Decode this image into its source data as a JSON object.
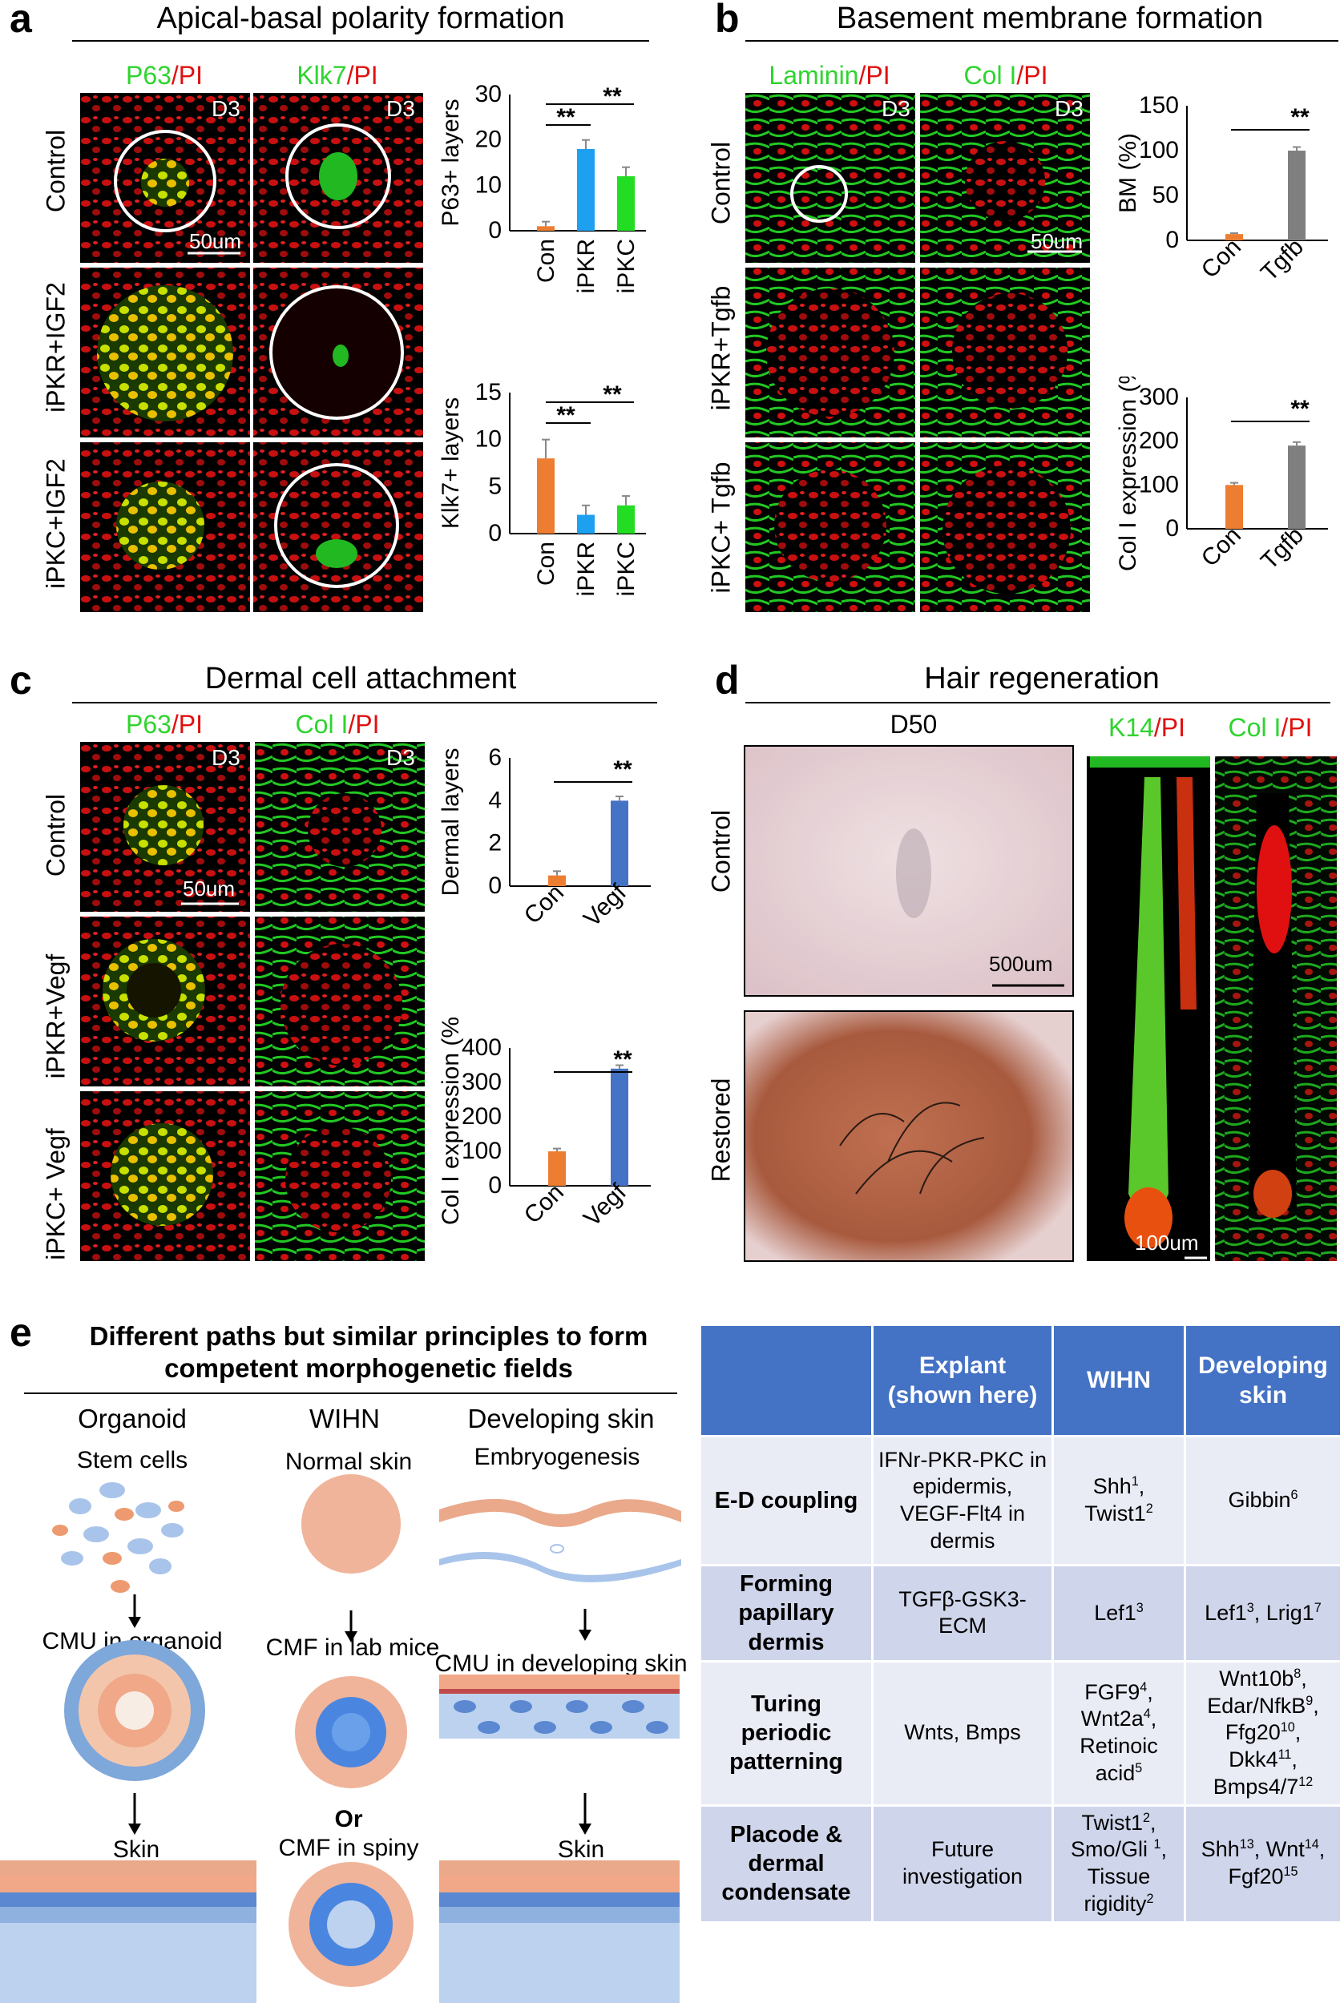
{
  "panels": {
    "a": {
      "letter": "a",
      "title": "Apical-basal polarity formation",
      "col1": {
        "marker": "P63",
        "sep": "/",
        "counter": "PI"
      },
      "col2": {
        "marker": "Klk7",
        "sep": "/",
        "counter": "PI"
      },
      "day": "D3",
      "rows": [
        "Control",
        "iPKR+IGF2",
        "iPKC+IGF2"
      ],
      "scalebar": "50um"
    },
    "b": {
      "letter": "b",
      "title": "Basement membrane formation",
      "col1": {
        "marker": "Laminin",
        "sep": "/",
        "counter": "PI"
      },
      "col2": {
        "marker": "Col I",
        "sep": "/",
        "counter": "PI"
      },
      "day": "D3",
      "rows": [
        "Control",
        "iPKR+Tgfb",
        "iPKC+ Tgfb"
      ],
      "scalebar": "50um"
    },
    "c": {
      "letter": "c",
      "title": "Dermal cell attachment",
      "col1": {
        "marker": "P63",
        "sep": "/",
        "counter": "PI"
      },
      "col2": {
        "marker": "Col I",
        "sep": "/",
        "counter": "PI"
      },
      "day": "D3",
      "rows": [
        "Control",
        "iPKR+Vegf",
        "iPKC+ Vegf"
      ],
      "scalebar": "50um"
    },
    "d": {
      "letter": "d",
      "title": "Hair regeneration",
      "day": "D50",
      "rows": [
        "Control",
        "Restored"
      ],
      "col2": {
        "marker": "K14",
        "sep": "/",
        "counter": "PI"
      },
      "col3": {
        "marker": "Col I",
        "sep": "/",
        "counter": "PI"
      },
      "scalebar1": "500um",
      "scalebar2": "100um"
    },
    "e": {
      "letter": "e",
      "title_line1": "Different paths but similar principles to form",
      "title_line2": "competent morphogenetic fields",
      "columns": [
        "Organoid",
        "WIHN",
        "Developing skin"
      ],
      "organoid": {
        "step1": "Stem cells",
        "step2": "CMU in organoid",
        "step3": "Skin"
      },
      "wihn": {
        "step1": "Normal skin",
        "step2": "CMF in lab mice",
        "or": "Or",
        "step3": "CMF in spiny"
      },
      "dev": {
        "step1": "Embryogenesis",
        "step2": "CMU in developing skin",
        "step3": "Skin"
      }
    }
  },
  "table": {
    "headers": [
      "",
      "Explant (shown here)",
      "WIHN",
      "Developing skin"
    ],
    "rows": [
      {
        "label": "E-D coupling",
        "explant": "IFNr-PKR-PKC in epidermis, VEGF-Flt4 in dermis",
        "wihn": [
          [
            "Shh",
            "1"
          ],
          [
            ", Twist1",
            "2"
          ]
        ],
        "dev": [
          [
            "Gibbin",
            "6"
          ]
        ]
      },
      {
        "label": "Forming papillary dermis",
        "explant": "TGFβ-GSK3-ECM",
        "wihn": [
          [
            "Lef1",
            "3"
          ]
        ],
        "dev": [
          [
            "Lef1",
            "3"
          ],
          [
            ", Lrig1",
            "7"
          ]
        ]
      },
      {
        "label": "Turing periodic patterning",
        "explant": "Wnts, Bmps",
        "wihn": [
          [
            "FGF9",
            "4"
          ],
          [
            ", Wnt2a",
            "4"
          ],
          [
            ", Retinoic acid",
            "5"
          ]
        ],
        "dev": [
          [
            "Wnt10b",
            "8"
          ],
          [
            ", Edar/NfkB",
            "9"
          ],
          [
            ", Ffg20",
            "10"
          ],
          [
            ", Dkk4",
            "11"
          ],
          [
            ", Bmps4/7",
            "12"
          ]
        ]
      },
      {
        "label": "Placode & dermal condensate",
        "explant": "Future investigation",
        "wihn": [
          [
            "Twist1",
            "2"
          ],
          [
            ", Smo/Gli ",
            "1"
          ],
          [
            ", Tissue rigidity",
            "2"
          ]
        ],
        "dev": [
          [
            "Shh",
            "13"
          ],
          [
            ", Wnt",
            "14"
          ],
          [
            ", Fgf20",
            "15"
          ]
        ]
      }
    ]
  },
  "colors": {
    "orange": "#ed7d31",
    "blue": "#1ea0f0",
    "green": "#22dd22",
    "gray": "#7f7f7f",
    "royal": "#4472c4"
  },
  "chart_data": [
    {
      "id": "a1",
      "type": "bar",
      "categories": [
        "Con",
        "iPKR",
        "iPKC"
      ],
      "values": [
        1,
        18,
        12
      ],
      "errors": [
        1,
        2,
        2
      ],
      "ylabel": "P63+ layers",
      "ylim": [
        0,
        30
      ],
      "yticks": [
        0,
        10,
        20,
        30
      ],
      "sig": [
        "**",
        "**"
      ],
      "colors": [
        "#ed7d31",
        "#1ea0f0",
        "#22dd22"
      ]
    },
    {
      "id": "a2",
      "type": "bar",
      "categories": [
        "Con",
        "iPKR",
        "iPKC"
      ],
      "values": [
        8,
        2,
        3
      ],
      "errors": [
        2,
        1,
        1
      ],
      "ylabel": "Klk7+ layers",
      "ylim": [
        0,
        15
      ],
      "yticks": [
        0,
        5,
        10,
        15
      ],
      "sig": [
        "**",
        "**"
      ],
      "colors": [
        "#ed7d31",
        "#1ea0f0",
        "#22dd22"
      ]
    },
    {
      "id": "b1",
      "type": "bar",
      "categories": [
        "Con",
        "Tgfb"
      ],
      "values": [
        7,
        100
      ],
      "errors": [
        1,
        4
      ],
      "ylabel": "BM (%)",
      "ylim": [
        0,
        150
      ],
      "yticks": [
        0,
        50,
        100,
        150
      ],
      "sig": [
        "**"
      ],
      "colors": [
        "#ed7d31",
        "#7f7f7f"
      ]
    },
    {
      "id": "b2",
      "type": "bar",
      "categories": [
        "Con",
        "Tgfb"
      ],
      "values": [
        100,
        190
      ],
      "errors": [
        5,
        8
      ],
      "ylabel": "Col I expression (%)",
      "ylim": [
        0,
        300
      ],
      "yticks": [
        0,
        100,
        200,
        300
      ],
      "sig": [
        "**"
      ],
      "colors": [
        "#ed7d31",
        "#7f7f7f"
      ]
    },
    {
      "id": "c1",
      "type": "bar",
      "categories": [
        "Con",
        "Vegf"
      ],
      "values": [
        0.5,
        4
      ],
      "errors": [
        0.2,
        0.2
      ],
      "ylabel": "Dermal layers",
      "ylim": [
        0,
        6
      ],
      "yticks": [
        0,
        2,
        4,
        6
      ],
      "sig": [
        "**"
      ],
      "colors": [
        "#ed7d31",
        "#4472c4"
      ]
    },
    {
      "id": "c2",
      "type": "bar",
      "categories": [
        "Con",
        "Vegf"
      ],
      "values": [
        100,
        340
      ],
      "errors": [
        8,
        10
      ],
      "ylabel": "Col I expression (%)",
      "ylim": [
        0,
        400
      ],
      "yticks": [
        0,
        100,
        200,
        300,
        400
      ],
      "sig": [
        "**"
      ],
      "colors": [
        "#ed7d31",
        "#4472c4"
      ]
    }
  ]
}
